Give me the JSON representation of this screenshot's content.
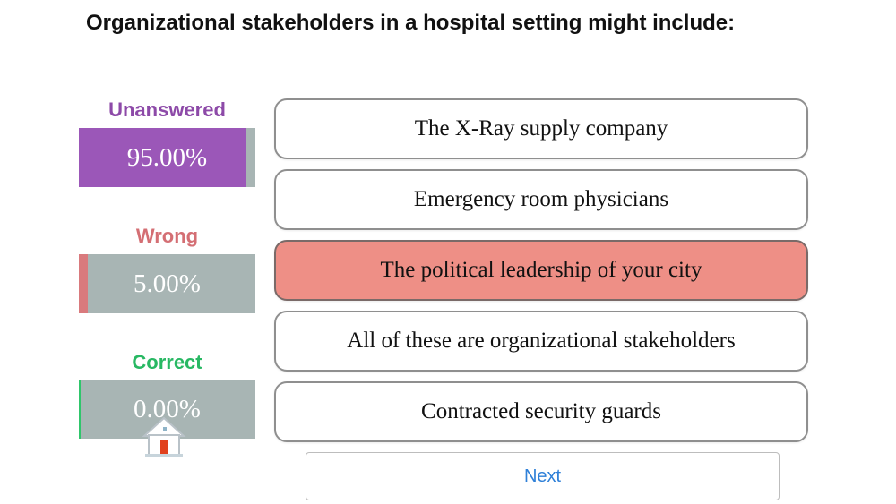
{
  "question": "Organizational stakeholders in a hospital setting might include:",
  "stats": [
    {
      "label": "Unanswered",
      "value": "95.00%",
      "fraction": 0.95,
      "color": "#9b57b8",
      "label_color": "#8d4aa8"
    },
    {
      "label": "Wrong",
      "value": "5.00%",
      "fraction": 0.05,
      "color": "#d97a7d",
      "label_color": "#d46f74"
    },
    {
      "label": "Correct",
      "value": "0.00%",
      "fraction": 0.0,
      "color": "#2fc66b",
      "label_color": "#28b863"
    }
  ],
  "answers": [
    {
      "text": "The X-Ray supply company",
      "state": "default"
    },
    {
      "text": "Emergency room physicians",
      "state": "default"
    },
    {
      "text": "The political leadership of your city",
      "state": "selected-wrong"
    },
    {
      "text": "All of these are organizational stakeholders",
      "state": "default"
    },
    {
      "text": "Contracted security guards",
      "state": "default"
    }
  ],
  "next_label": "Next",
  "home_icon": "home-icon"
}
